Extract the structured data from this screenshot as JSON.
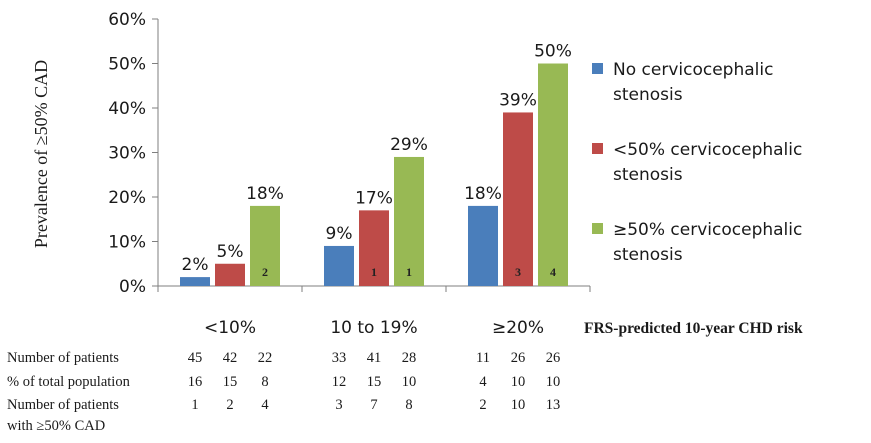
{
  "chart_data": {
    "type": "bar",
    "ylabel": "Prevalence of ≥50% CAD",
    "xlabel": "FRS-predicted 10-year CHD risk",
    "ylim": [
      0,
      60
    ],
    "yticks": [
      "0%",
      "10%",
      "20%",
      "30%",
      "40%",
      "50%",
      "60%"
    ],
    "categories": [
      "<10%",
      "10 to 19%",
      "≥20%"
    ],
    "legend_position": "right",
    "series": [
      {
        "name": "No cervicocephalic stenosis",
        "color": "#4a7ebb",
        "values": [
          2,
          9,
          18
        ],
        "labels": [
          "2%",
          "9%",
          "18%"
        ],
        "inner_labels": [
          "",
          "",
          ""
        ]
      },
      {
        "name": "<50% cervicocephalic stenosis",
        "color": "#be4b48",
        "values": [
          5,
          17,
          39
        ],
        "labels": [
          "5%",
          "17%",
          "39%"
        ],
        "inner_labels": [
          "",
          "1",
          "3"
        ]
      },
      {
        "name": "≥50% cervicocephalic stenosis",
        "color": "#98b954",
        "values": [
          18,
          29,
          50
        ],
        "labels": [
          "18%",
          "29%",
          "50%"
        ],
        "inner_labels": [
          "2",
          "1",
          "4"
        ]
      }
    ]
  },
  "table": {
    "rows": [
      {
        "label": "Number of patients",
        "cells": [
          "45",
          "42",
          "22",
          "33",
          "41",
          "28",
          "11",
          "26",
          "26"
        ]
      },
      {
        "label": "% of total population",
        "cells": [
          "16",
          "15",
          "8",
          "12",
          "15",
          "10",
          "4",
          "10",
          "10"
        ]
      },
      {
        "label": "Number of patients",
        "label2": "with ≥50% CAD",
        "cells": [
          "1",
          "2",
          "4",
          "3",
          "7",
          "8",
          "2",
          "10",
          "13"
        ]
      }
    ]
  }
}
